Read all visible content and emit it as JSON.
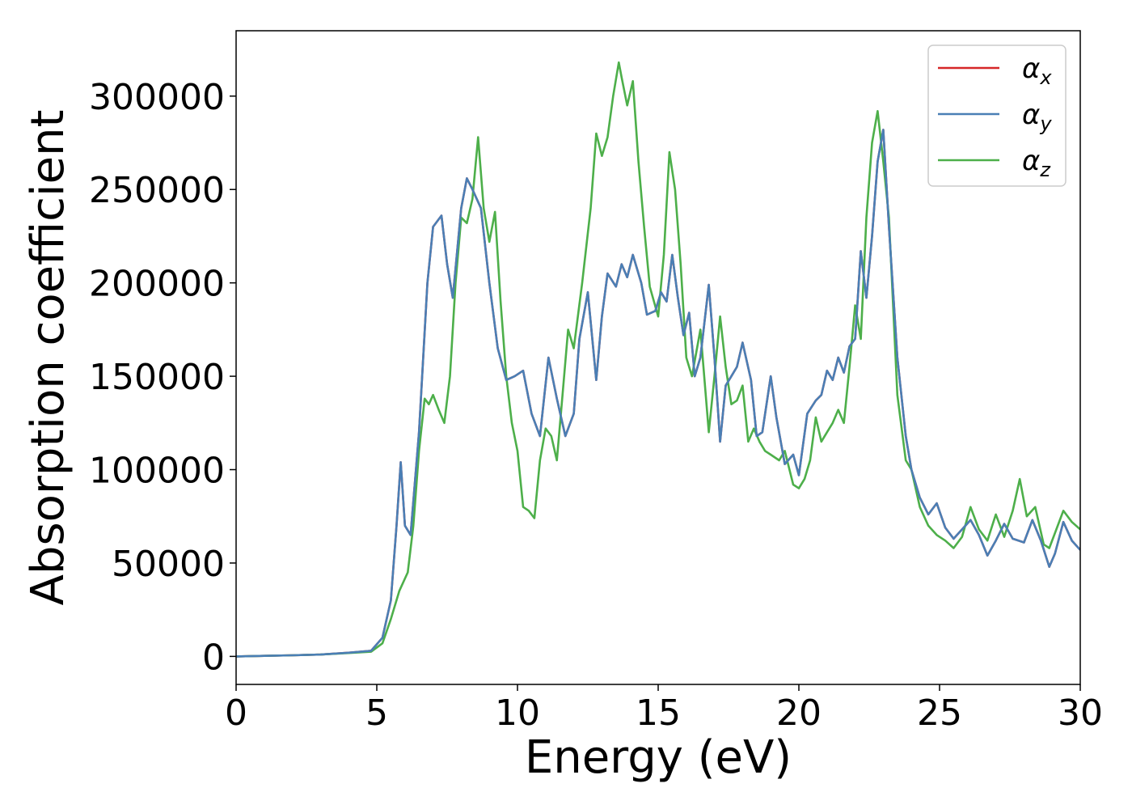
{
  "chart_data": {
    "type": "line",
    "xlabel": "Energy (eV)",
    "ylabel": "Absorption coefficient",
    "xlim": [
      0,
      30
    ],
    "ylim": [
      -15000,
      335000
    ],
    "xticks": [
      0,
      5,
      10,
      15,
      20,
      25,
      30
    ],
    "yticks": [
      0,
      50000,
      100000,
      150000,
      200000,
      250000,
      300000
    ],
    "grid": false,
    "legend_position": "top-right",
    "series": [
      {
        "name": "αx",
        "name_base": "α",
        "name_sub": "x",
        "color": "#d62728",
        "x": [
          0,
          1,
          2,
          3,
          4,
          4.8,
          5.2,
          5.5,
          5.7,
          5.85,
          6.0,
          6.2,
          6.5,
          6.8,
          7.0,
          7.3,
          7.5,
          7.7,
          8.0,
          8.2,
          8.4,
          8.7,
          9.0,
          9.3,
          9.6,
          9.9,
          10.2,
          10.5,
          10.8,
          11.1,
          11.4,
          11.7,
          12.0,
          12.2,
          12.5,
          12.8,
          13.0,
          13.2,
          13.5,
          13.7,
          13.9,
          14.1,
          14.4,
          14.6,
          14.9,
          15.1,
          15.3,
          15.5,
          15.7,
          15.9,
          16.1,
          16.3,
          16.5,
          16.8,
          17.0,
          17.2,
          17.4,
          17.6,
          17.8,
          18.0,
          18.3,
          18.5,
          18.7,
          19.0,
          19.2,
          19.5,
          19.8,
          20.0,
          20.3,
          20.6,
          20.8,
          21.0,
          21.2,
          21.4,
          21.6,
          21.8,
          22.0,
          22.2,
          22.4,
          22.6,
          22.8,
          23.0,
          23.2,
          23.5,
          23.8,
          24.0,
          24.3,
          24.6,
          24.9,
          25.2,
          25.5,
          25.8,
          26.1,
          26.4,
          26.7,
          27.0,
          27.3,
          27.6,
          28.0,
          28.3,
          28.6,
          28.9,
          29.1,
          29.4,
          29.7,
          30.0
        ],
        "values": [
          0,
          300,
          600,
          1000,
          2000,
          3000,
          10000,
          30000,
          70000,
          104000,
          70000,
          65000,
          120000,
          200000,
          230000,
          236000,
          210000,
          192000,
          240000,
          256000,
          250000,
          240000,
          200000,
          165000,
          148000,
          150000,
          153000,
          130000,
          118000,
          160000,
          138000,
          118000,
          130000,
          170000,
          195000,
          148000,
          182000,
          205000,
          198000,
          210000,
          203000,
          215000,
          200000,
          183000,
          185000,
          195000,
          190000,
          215000,
          192000,
          172000,
          184000,
          150000,
          160000,
          199000,
          160000,
          115000,
          145000,
          150000,
          155000,
          168000,
          148000,
          118000,
          120000,
          150000,
          128000,
          103000,
          108000,
          97000,
          130000,
          137000,
          140000,
          153000,
          148000,
          160000,
          152000,
          166000,
          170000,
          217000,
          192000,
          225000,
          265000,
          282000,
          230000,
          160000,
          118000,
          100000,
          85000,
          76000,
          82000,
          69000,
          63000,
          68000,
          73000,
          65000,
          54000,
          62000,
          71000,
          63000,
          61000,
          73000,
          62000,
          48000,
          55000,
          72000,
          62000,
          57000
        ]
      },
      {
        "name": "αy",
        "name_base": "α",
        "name_sub": "y",
        "color": "#4a7fb5",
        "x": [
          0,
          1,
          2,
          3,
          4,
          4.8,
          5.2,
          5.5,
          5.7,
          5.85,
          6.0,
          6.2,
          6.5,
          6.8,
          7.0,
          7.3,
          7.5,
          7.7,
          8.0,
          8.2,
          8.4,
          8.7,
          9.0,
          9.3,
          9.6,
          9.9,
          10.2,
          10.5,
          10.8,
          11.1,
          11.4,
          11.7,
          12.0,
          12.2,
          12.5,
          12.8,
          13.0,
          13.2,
          13.5,
          13.7,
          13.9,
          14.1,
          14.4,
          14.6,
          14.9,
          15.1,
          15.3,
          15.5,
          15.7,
          15.9,
          16.1,
          16.3,
          16.5,
          16.8,
          17.0,
          17.2,
          17.4,
          17.6,
          17.8,
          18.0,
          18.3,
          18.5,
          18.7,
          19.0,
          19.2,
          19.5,
          19.8,
          20.0,
          20.3,
          20.6,
          20.8,
          21.0,
          21.2,
          21.4,
          21.6,
          21.8,
          22.0,
          22.2,
          22.4,
          22.6,
          22.8,
          23.0,
          23.2,
          23.5,
          23.8,
          24.0,
          24.3,
          24.6,
          24.9,
          25.2,
          25.5,
          25.8,
          26.1,
          26.4,
          26.7,
          27.0,
          27.3,
          27.6,
          28.0,
          28.3,
          28.6,
          28.9,
          29.1,
          29.4,
          29.7,
          30.0
        ],
        "values": [
          0,
          300,
          600,
          1000,
          2000,
          3000,
          10000,
          30000,
          70000,
          104000,
          70000,
          65000,
          120000,
          200000,
          230000,
          236000,
          210000,
          192000,
          240000,
          256000,
          250000,
          240000,
          200000,
          165000,
          148000,
          150000,
          153000,
          130000,
          118000,
          160000,
          138000,
          118000,
          130000,
          170000,
          195000,
          148000,
          182000,
          205000,
          198000,
          210000,
          203000,
          215000,
          200000,
          183000,
          185000,
          195000,
          190000,
          215000,
          192000,
          172000,
          184000,
          150000,
          160000,
          199000,
          160000,
          115000,
          145000,
          150000,
          155000,
          168000,
          148000,
          118000,
          120000,
          150000,
          128000,
          103000,
          108000,
          97000,
          130000,
          137000,
          140000,
          153000,
          148000,
          160000,
          152000,
          166000,
          170000,
          217000,
          192000,
          225000,
          265000,
          282000,
          230000,
          160000,
          118000,
          100000,
          85000,
          76000,
          82000,
          69000,
          63000,
          68000,
          73000,
          65000,
          54000,
          62000,
          71000,
          63000,
          61000,
          73000,
          62000,
          48000,
          55000,
          72000,
          62000,
          57000
        ]
      },
      {
        "name": "αz",
        "name_base": "α",
        "name_sub": "z",
        "color": "#4daf4a",
        "x": [
          0,
          1,
          2,
          3,
          4,
          4.8,
          5.2,
          5.5,
          5.8,
          6.1,
          6.3,
          6.5,
          6.7,
          6.85,
          7.0,
          7.2,
          7.4,
          7.6,
          7.8,
          8.0,
          8.2,
          8.4,
          8.6,
          8.8,
          9.0,
          9.2,
          9.4,
          9.6,
          9.8,
          10.0,
          10.2,
          10.4,
          10.6,
          10.8,
          11.0,
          11.2,
          11.4,
          11.6,
          11.8,
          12.0,
          12.3,
          12.6,
          12.8,
          13.0,
          13.2,
          13.4,
          13.6,
          13.7,
          13.9,
          14.1,
          14.3,
          14.5,
          14.7,
          15.0,
          15.2,
          15.4,
          15.6,
          15.8,
          16.0,
          16.2,
          16.5,
          16.8,
          17.0,
          17.2,
          17.4,
          17.6,
          17.8,
          18.0,
          18.2,
          18.4,
          18.6,
          18.8,
          19.0,
          19.3,
          19.5,
          19.8,
          20.0,
          20.2,
          20.4,
          20.6,
          20.8,
          21.0,
          21.2,
          21.4,
          21.6,
          21.8,
          22.0,
          22.2,
          22.4,
          22.6,
          22.8,
          23.0,
          23.2,
          23.5,
          23.8,
          24.0,
          24.3,
          24.6,
          24.9,
          25.2,
          25.5,
          25.8,
          26.1,
          26.4,
          26.7,
          27.0,
          27.3,
          27.6,
          27.85,
          28.1,
          28.4,
          28.7,
          28.9,
          29.1,
          29.4,
          29.7,
          30.0
        ],
        "values": [
          0,
          300,
          600,
          1000,
          1800,
          2500,
          7000,
          20000,
          35000,
          45000,
          70000,
          110000,
          138000,
          135000,
          140000,
          132000,
          125000,
          150000,
          200000,
          235000,
          232000,
          245000,
          278000,
          240000,
          222000,
          238000,
          190000,
          150000,
          125000,
          110000,
          80000,
          78000,
          74000,
          105000,
          122000,
          118000,
          105000,
          140000,
          175000,
          165000,
          200000,
          240000,
          280000,
          268000,
          278000,
          300000,
          318000,
          310000,
          295000,
          308000,
          265000,
          230000,
          198000,
          182000,
          215000,
          270000,
          250000,
          210000,
          160000,
          150000,
          175000,
          120000,
          150000,
          182000,
          155000,
          135000,
          137000,
          145000,
          115000,
          122000,
          115000,
          110000,
          108000,
          105000,
          110000,
          92000,
          90000,
          95000,
          105000,
          128000,
          115000,
          120000,
          125000,
          132000,
          125000,
          155000,
          188000,
          170000,
          235000,
          275000,
          292000,
          265000,
          235000,
          140000,
          105000,
          100000,
          80000,
          70000,
          65000,
          62000,
          58000,
          64000,
          80000,
          68000,
          62000,
          76000,
          64000,
          78000,
          95000,
          75000,
          80000,
          60000,
          58000,
          66000,
          78000,
          72000,
          68000
        ]
      }
    ]
  }
}
